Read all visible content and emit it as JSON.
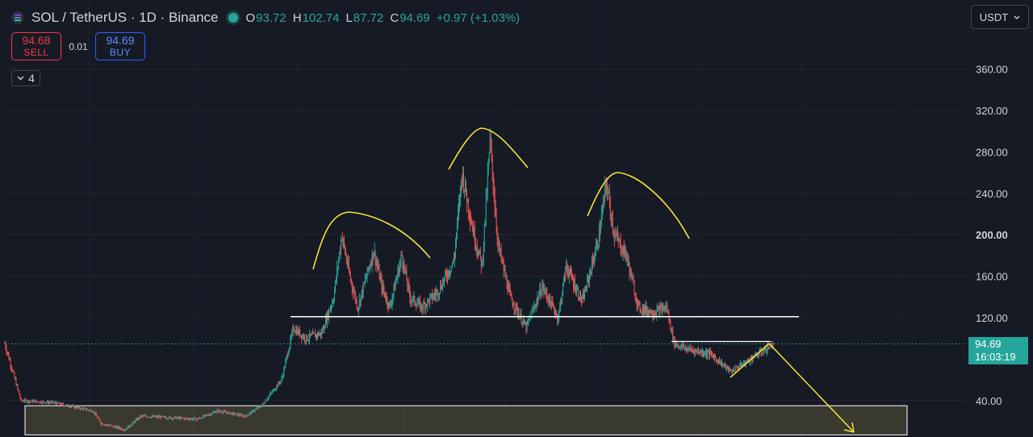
{
  "header": {
    "symbol_title": "SOL / TetherUS · 1D · Binance",
    "ohlc": {
      "open_label": "O",
      "open": "93.72",
      "high_label": "H",
      "high": "102.74",
      "low_label": "L",
      "low": "87.72",
      "close_label": "C",
      "close": "94.69",
      "change": "+0.97 (+1.03%)"
    }
  },
  "trade": {
    "sell_price": "94.68",
    "sell_label": "SELL",
    "spread": "0.01",
    "buy_price": "94.69",
    "buy_label": "BUY"
  },
  "indicators_toggle": {
    "count": "4"
  },
  "currency_select": {
    "value": "USDT"
  },
  "last_price": {
    "price": "94.69",
    "countdown": "16:03:19"
  },
  "colors": {
    "up": "#26a69a",
    "down": "#ef5350",
    "background": "#161a25",
    "annotation": "#f6e23a",
    "level_line": "#ffffff"
  },
  "chart_data": {
    "type": "candlestick",
    "ylim": [
      10,
      390
    ],
    "y_ticks": [
      "360.00",
      "320.00",
      "280.00",
      "240.00",
      "200.00",
      "160.00",
      "120.00",
      "40.00"
    ],
    "bold_tick": "200.00",
    "grid": true,
    "n_bars": 1150,
    "series": [
      {
        "close_path": [
          [
            0,
            95
          ],
          [
            20,
            40
          ],
          [
            60,
            38
          ],
          [
            110,
            30
          ],
          [
            120,
            18
          ],
          [
            150,
            12
          ],
          [
            170,
            25
          ],
          [
            240,
            22
          ],
          [
            265,
            30
          ],
          [
            300,
            25
          ],
          [
            320,
            35
          ],
          [
            345,
            60
          ],
          [
            360,
            110
          ],
          [
            375,
            100
          ],
          [
            395,
            105
          ],
          [
            410,
            140
          ],
          [
            420,
            200
          ],
          [
            430,
            160
          ],
          [
            440,
            130
          ],
          [
            460,
            185
          ],
          [
            470,
            150
          ],
          [
            480,
            130
          ],
          [
            495,
            180
          ],
          [
            505,
            140
          ],
          [
            520,
            130
          ],
          [
            540,
            145
          ],
          [
            560,
            175
          ],
          [
            570,
            260
          ],
          [
            585,
            200
          ],
          [
            595,
            170
          ],
          [
            605,
            290
          ],
          [
            615,
            190
          ],
          [
            630,
            140
          ],
          [
            650,
            110
          ],
          [
            670,
            150
          ],
          [
            690,
            120
          ],
          [
            700,
            170
          ],
          [
            720,
            135
          ],
          [
            740,
            195
          ],
          [
            750,
            250
          ],
          [
            760,
            200
          ],
          [
            775,
            180
          ],
          [
            790,
            130
          ],
          [
            810,
            125
          ],
          [
            825,
            130
          ],
          [
            835,
            95
          ],
          [
            850,
            90
          ],
          [
            880,
            85
          ],
          [
            905,
            68
          ],
          [
            930,
            80
          ],
          [
            950,
            90
          ],
          [
            958,
            94.69
          ]
        ]
      }
    ],
    "annotations": {
      "support_line_price": 121,
      "breakdown_line_price": 97,
      "demand_zone": [
        10,
        35
      ],
      "arcs": [
        "left-shoulder",
        "head",
        "right-shoulder"
      ],
      "projection_target_price": 10
    }
  }
}
